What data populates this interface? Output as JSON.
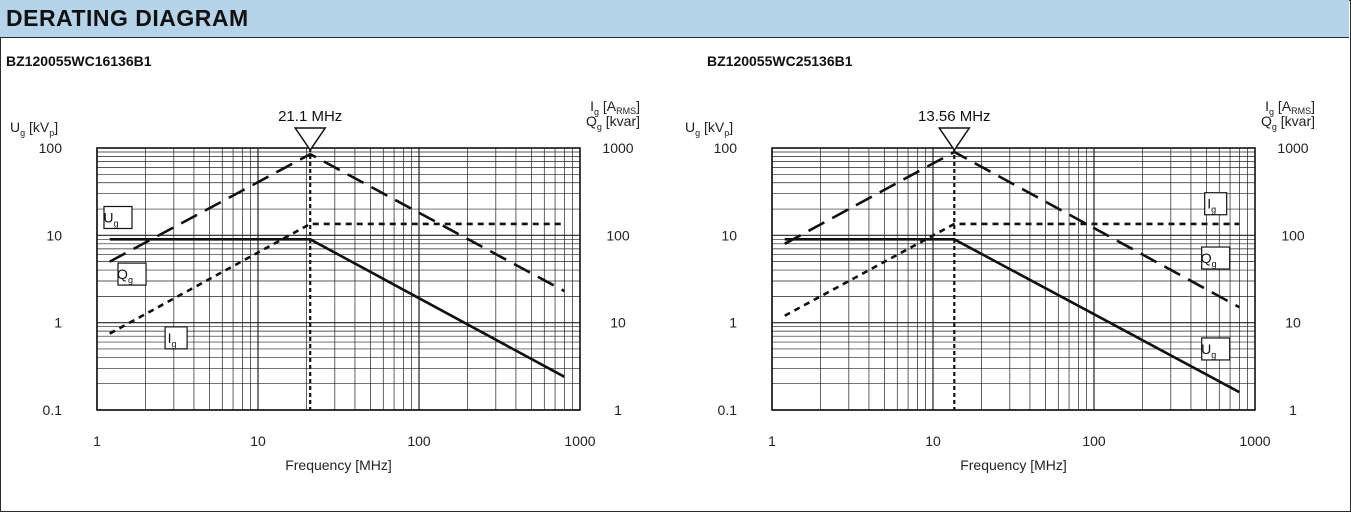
{
  "header": {
    "title": "DERATING DIAGRAM"
  },
  "chart_data": [
    {
      "type": "line",
      "title": "BZ120055WC16136B1",
      "xlabel": "Frequency [MHz]",
      "x_scale": "log",
      "xlim": [
        1,
        1000
      ],
      "x_ticks": [
        "1",
        "10",
        "100",
        "1000"
      ],
      "y_left": {
        "var": "U",
        "sub": "g",
        "unit": "[kV",
        "unit_sub": "p",
        "unit_end": "]",
        "scale": "log",
        "lim": [
          0.1,
          100
        ],
        "ticks": [
          "0.1",
          "1",
          "10",
          "100"
        ]
      },
      "y_right": {
        "var1": "I",
        "sub1": "g",
        "unit1": "[A",
        "unit1_sub": "RMS",
        "unit1_end": "]",
        "var2": "Q",
        "sub2": "g",
        "unit2": "[kvar]",
        "scale": "log",
        "lim": [
          1,
          1000
        ],
        "ticks": [
          "1",
          "10",
          "100",
          "1000"
        ]
      },
      "grid": true,
      "marker": {
        "x": 21.1,
        "label": "21.1 MHz"
      },
      "series": [
        {
          "name": "U",
          "sub": "g",
          "axis": "left",
          "style": "solid",
          "x": [
            1.2,
            21.1,
            800
          ],
          "y": [
            9,
            9,
            0.24
          ],
          "label_pos": [
            1.35,
            16
          ]
        },
        {
          "name": "I",
          "sub": "g",
          "axis": "right",
          "style": "short-dash",
          "x": [
            1.2,
            21.1,
            800
          ],
          "y": [
            7.5,
            135,
            135
          ],
          "label_pos": [
            3.1,
            6.7
          ]
        },
        {
          "name": "Q",
          "sub": "g",
          "axis": "right",
          "style": "long-dash",
          "x": [
            1.2,
            21.1,
            800
          ],
          "y": [
            50,
            850,
            23
          ],
          "label_pos": [
            1.65,
            36
          ]
        }
      ]
    },
    {
      "type": "line",
      "title": "BZ120055WC25136B1",
      "xlabel": "Frequency [MHz]",
      "x_scale": "log",
      "xlim": [
        1,
        1000
      ],
      "x_ticks": [
        "1",
        "10",
        "100",
        "1000"
      ],
      "y_left": {
        "var": "U",
        "sub": "g",
        "unit": "[kV",
        "unit_sub": "p",
        "unit_end": "]",
        "scale": "log",
        "lim": [
          0.1,
          100
        ],
        "ticks": [
          "0.1",
          "1",
          "10",
          "100"
        ]
      },
      "y_right": {
        "var1": "I",
        "sub1": "g",
        "unit1": "[A",
        "unit1_sub": "RMS",
        "unit1_end": "]",
        "var2": "Q",
        "sub2": "g",
        "unit2": "[kvar]",
        "scale": "log",
        "lim": [
          1,
          1000
        ],
        "ticks": [
          "1",
          "10",
          "100",
          "1000"
        ]
      },
      "grid": true,
      "marker": {
        "x": 13.56,
        "label": "13.56 MHz"
      },
      "series": [
        {
          "name": "U",
          "sub": "g",
          "axis": "left",
          "style": "solid",
          "x": [
            1.2,
            13.56,
            800
          ],
          "y": [
            9,
            9,
            0.16
          ],
          "label_pos": [
            570,
            0.5
          ]
        },
        {
          "name": "I",
          "sub": "g",
          "axis": "right",
          "style": "short-dash",
          "x": [
            1.2,
            13.56,
            800
          ],
          "y": [
            12,
            135,
            135
          ],
          "label_pos": [
            570,
            230
          ]
        },
        {
          "name": "Q",
          "sub": "g",
          "axis": "right",
          "style": "long-dash",
          "x": [
            1.2,
            13.56,
            800
          ],
          "y": [
            80,
            900,
            15
          ],
          "label_pos": [
            570,
            55
          ]
        }
      ]
    }
  ]
}
